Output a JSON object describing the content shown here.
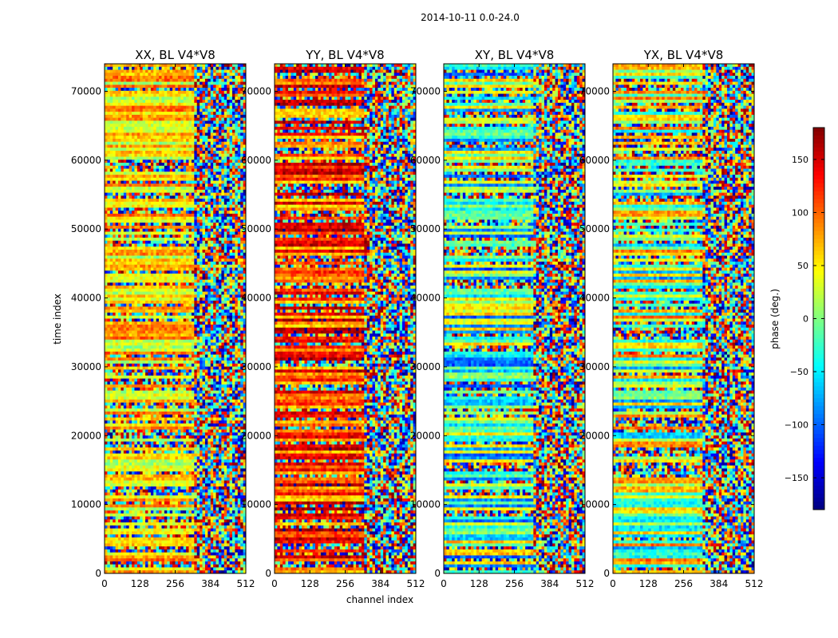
{
  "figure_title": "2014-10-11 0.0-24.0",
  "chart_data": {
    "type": "heatmap",
    "suptitle": "2014-10-11 0.0-24.0",
    "xlabel": "channel index",
    "ylabel": "time index",
    "xlim": [
      0,
      512
    ],
    "ylim": [
      0,
      74000
    ],
    "xticks": [
      0,
      128,
      256,
      384,
      512
    ],
    "yticks": [
      0,
      10000,
      20000,
      30000,
      40000,
      50000,
      60000,
      70000
    ],
    "panels": [
      {
        "title": "XX, BL V4*V8",
        "bias": 55,
        "spread": 45
      },
      {
        "title": "YY, BL V4*V8",
        "bias": 110,
        "spread": 55
      },
      {
        "title": "XY, BL V4*V8",
        "bias": -20,
        "spread": 90
      },
      {
        "title": "YX, BL V4*V8",
        "bias": 10,
        "spread": 90
      }
    ],
    "colorbar": {
      "label": "phase (deg.)",
      "range": [
        -180,
        180
      ],
      "ticks": [
        -150,
        -100,
        -50,
        0,
        50,
        100,
        150
      ],
      "colormap": "jet"
    }
  }
}
